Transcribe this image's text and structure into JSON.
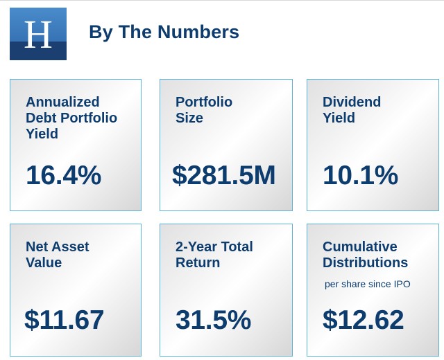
{
  "header": {
    "logo_letter": "H",
    "title": "By The Numbers",
    "colors": {
      "logo_top": "#3f7fbf",
      "logo_bottom": "#1c3f72",
      "text": "#0d3c6e",
      "card_border": "#5ab3d6"
    }
  },
  "cards": [
    {
      "label": "Annualized\nDebt Portfolio\nYield",
      "sublabel": "",
      "value": "16.4%"
    },
    {
      "label": "Portfolio\nSize",
      "sublabel": "",
      "value": "$281.5M"
    },
    {
      "label": "Dividend\nYield",
      "sublabel": "",
      "value": "10.1%"
    },
    {
      "label": "Net Asset\nValue",
      "sublabel": "",
      "value": "$11.67"
    },
    {
      "label": "2-Year Total\nReturn",
      "sublabel": "",
      "value": "31.5%"
    },
    {
      "label": "Cumulative\nDistributions",
      "sublabel": "per share since IPO",
      "value": "$12.62"
    }
  ]
}
